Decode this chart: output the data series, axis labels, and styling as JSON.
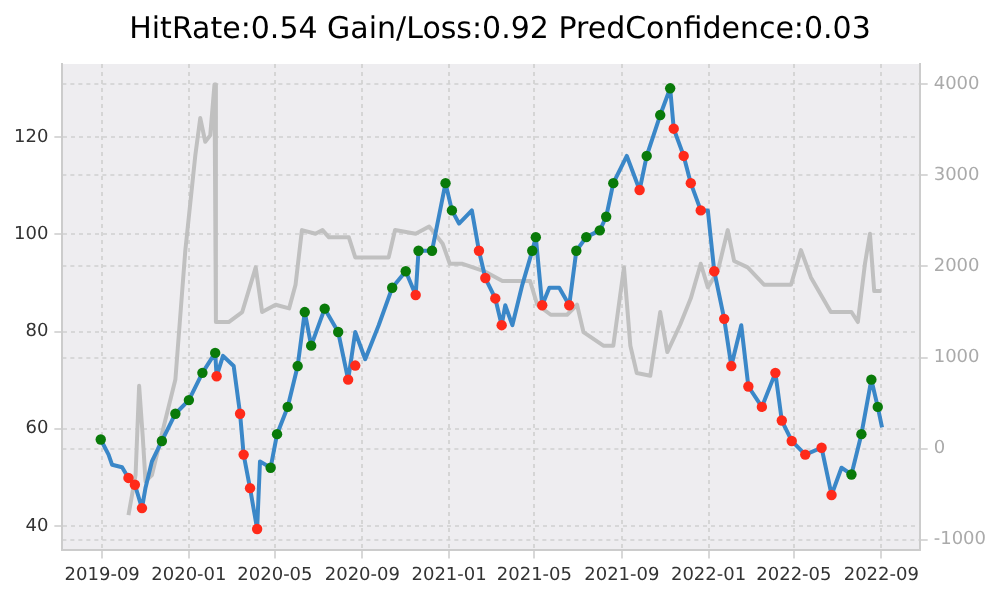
{
  "chart_data": {
    "type": "line",
    "title": "HitRate:0.54 Gain/Loss:0.92 PredConfidence:0.03",
    "xlim": [
      "2019-07-07",
      "2022-10-25"
    ],
    "xticks": [
      "2019-09",
      "2020-01",
      "2020-05",
      "2020-09",
      "2021-01",
      "2021-05",
      "2021-09",
      "2022-01",
      "2022-05",
      "2022-09"
    ],
    "ylim": [
      35,
      135
    ],
    "yticks": [
      40,
      60,
      80,
      100,
      120
    ],
    "y2lim": [
      -1118,
      4224
    ],
    "y2ticks": [
      -1000,
      0,
      1000,
      2000,
      3000,
      4000
    ],
    "grid": true,
    "legend": false,
    "series": [
      {
        "axis": "y2",
        "color": "#c0c0c0",
        "x": [
          "2019-10-08",
          "2019-10-18",
          "2019-10-23",
          "2019-10-28",
          "2019-11-01",
          "2019-11-10",
          "2019-11-24",
          "2019-12-13",
          "2019-12-27",
          "2020-01-10",
          "2020-01-17",
          "2020-01-24",
          "2020-01-31",
          "2020-02-06",
          "2020-02-08",
          "2020-02-26",
          "2020-03-16",
          "2020-04-04",
          "2020-04-13",
          "2020-05-02",
          "2020-05-21",
          "2020-05-30",
          "2020-06-08",
          "2020-06-27",
          "2020-07-07",
          "2020-07-16",
          "2020-08-13",
          "2020-08-22",
          "2020-10-08",
          "2020-10-17",
          "2020-11-15",
          "2020-12-04",
          "2020-12-23",
          "2021-01-02",
          "2021-01-20",
          "2021-02-19",
          "2021-03-17",
          "2021-04-25",
          "2021-05-05",
          "2021-05-24",
          "2021-06-16",
          "2021-06-30",
          "2021-07-09",
          "2021-08-06",
          "2021-08-20",
          "2021-09-04",
          "2021-09-13",
          "2021-09-22",
          "2021-10-11",
          "2021-10-25",
          "2021-11-04",
          "2021-11-22",
          "2021-12-07",
          "2021-12-21",
          "2021-12-31",
          "2022-01-14",
          "2022-01-28",
          "2022-02-06",
          "2022-02-25",
          "2022-03-20",
          "2022-04-27",
          "2022-05-11",
          "2022-05-25",
          "2022-06-22",
          "2022-07-21",
          "2022-07-30",
          "2022-08-09",
          "2022-08-16",
          "2022-08-22",
          "2022-09-01"
        ],
        "values": [
          -730,
          -290,
          690,
          140,
          -360,
          -290,
          160,
          760,
          2180,
          3220,
          3630,
          3370,
          3440,
          4000,
          1390,
          1390,
          1500,
          1990,
          1500,
          1580,
          1540,
          1800,
          2400,
          2360,
          2400,
          2320,
          2320,
          2100,
          2100,
          2400,
          2360,
          2440,
          2250,
          2030,
          2030,
          1950,
          1840,
          1840,
          1580,
          1470,
          1470,
          1580,
          1280,
          1130,
          1130,
          1990,
          1130,
          830,
          800,
          1500,
          1060,
          1360,
          1650,
          2030,
          1770,
          1950,
          2400,
          2060,
          1990,
          1800,
          1800,
          2180,
          1880,
          1500,
          1500,
          1390,
          2030,
          2360,
          1730,
          1730
        ]
      },
      {
        "color": "#3a87c8",
        "x": [
          "2019-08-30",
          "2019-09-10",
          "2019-09-15",
          "2019-09-29",
          "2019-10-08",
          "2019-10-17",
          "2019-10-27",
          "2019-11-01",
          "2019-11-10",
          "2019-11-24",
          "2019-12-13",
          "2020-01-01",
          "2020-01-20",
          "2020-02-07",
          "2020-02-09",
          "2020-02-18",
          "2020-03-04",
          "2020-03-13",
          "2020-03-18",
          "2020-03-27",
          "2020-04-06",
          "2020-04-10",
          "2020-04-25",
          "2020-05-04",
          "2020-05-19",
          "2020-06-02",
          "2020-06-12",
          "2020-06-21",
          "2020-07-10",
          "2020-07-29",
          "2020-08-12",
          "2020-08-22",
          "2020-09-05",
          "2020-09-24",
          "2020-10-13",
          "2020-11-01",
          "2020-11-15",
          "2020-11-19",
          "2020-12-08",
          "2020-12-27",
          "2021-01-05",
          "2021-01-15",
          "2021-02-02",
          "2021-02-12",
          "2021-02-21",
          "2021-03-07",
          "2021-03-16",
          "2021-03-21",
          "2021-03-31",
          "2021-04-14",
          "2021-04-28",
          "2021-05-03",
          "2021-05-12",
          "2021-05-22",
          "2021-06-05",
          "2021-06-19",
          "2021-06-29",
          "2021-07-13",
          "2021-08-01",
          "2021-08-10",
          "2021-08-20",
          "2021-09-08",
          "2021-09-26",
          "2021-10-06",
          "2021-10-25",
          "2021-11-08",
          "2021-11-13",
          "2021-11-27",
          "2021-12-07",
          "2021-12-21",
          "2021-12-31",
          "2022-01-09",
          "2022-01-23",
          "2022-02-02",
          "2022-02-16",
          "2022-02-26",
          "2022-03-17",
          "2022-04-05",
          "2022-04-14",
          "2022-04-28",
          "2022-05-17",
          "2022-06-09",
          "2022-06-23",
          "2022-07-07",
          "2022-07-21",
          "2022-08-04",
          "2022-08-18",
          "2022-08-27",
          "2022-09-02"
        ],
        "values": [
          57.8,
          54.7,
          52.6,
          52.1,
          49.9,
          48.5,
          43.7,
          47.9,
          53.3,
          57.5,
          63.1,
          65.9,
          71.5,
          75.6,
          70.8,
          75,
          72.9,
          63.1,
          54.7,
          47.8,
          39.4,
          53.3,
          52,
          58.9,
          64.5,
          72.9,
          84,
          77.1,
          84.7,
          79.9,
          70.1,
          79.9,
          74.3,
          81.3,
          89,
          92.4,
          87.5,
          96.6,
          96.6,
          110.5,
          104.9,
          102.2,
          104.9,
          96.6,
          91,
          86.8,
          81.3,
          85.4,
          81.3,
          89.6,
          96.6,
          99.4,
          85.4,
          89,
          89,
          85.4,
          96.6,
          99.4,
          100.8,
          103.6,
          110.5,
          116.1,
          109.1,
          116.1,
          124.5,
          130,
          121.7,
          116.1,
          110.5,
          104.9,
          104.9,
          92.4,
          82.6,
          72.9,
          81.3,
          68.7,
          64.5,
          71.5,
          61.7,
          57.5,
          54.7,
          56.1,
          46.4,
          52,
          50.6,
          58.9,
          70.1,
          64.5,
          60.3
        ]
      },
      {
        "type": "scatter",
        "marker": "circle",
        "color": "#097a09",
        "x": [
          "2019-08-30",
          "2019-11-24",
          "2019-12-13",
          "2020-01-01",
          "2020-01-20",
          "2020-02-07",
          "2020-04-25",
          "2020-05-04",
          "2020-05-19",
          "2020-06-02",
          "2020-06-12",
          "2020-06-21",
          "2020-07-10",
          "2020-07-29",
          "2020-10-13",
          "2020-11-01",
          "2020-11-19",
          "2020-12-08",
          "2020-12-27",
          "2021-01-05",
          "2021-04-28",
          "2021-05-03",
          "2021-06-29",
          "2021-07-13",
          "2021-08-01",
          "2021-08-10",
          "2021-08-20",
          "2021-10-06",
          "2021-10-25",
          "2021-11-08",
          "2022-07-21",
          "2022-08-04",
          "2022-08-18",
          "2022-08-27"
        ],
        "values": [
          57.8,
          57.5,
          63.1,
          65.9,
          71.5,
          75.6,
          52,
          58.9,
          64.5,
          72.9,
          84,
          77.1,
          84.7,
          79.9,
          89,
          92.4,
          96.6,
          96.6,
          110.5,
          104.9,
          96.6,
          99.4,
          96.6,
          99.4,
          100.8,
          103.6,
          110.5,
          116.1,
          124.5,
          130,
          50.6,
          58.9,
          70.1,
          64.5
        ]
      },
      {
        "type": "scatter",
        "marker": "circle",
        "color": "#ff2a1a",
        "x": [
          "2019-10-08",
          "2019-10-17",
          "2019-10-27",
          "2020-02-09",
          "2020-03-13",
          "2020-03-18",
          "2020-03-27",
          "2020-04-06",
          "2020-08-12",
          "2020-08-22",
          "2020-11-15",
          "2021-02-12",
          "2021-02-21",
          "2021-03-07",
          "2021-03-16",
          "2021-05-12",
          "2021-06-19",
          "2021-09-26",
          "2021-11-13",
          "2021-11-27",
          "2021-12-07",
          "2021-12-21",
          "2022-01-09",
          "2022-01-23",
          "2022-02-02",
          "2022-02-26",
          "2022-03-17",
          "2022-04-05",
          "2022-04-14",
          "2022-04-28",
          "2022-05-17",
          "2022-06-09",
          "2022-06-23"
        ],
        "values": [
          49.9,
          48.5,
          43.7,
          70.8,
          63.1,
          54.7,
          47.8,
          39.4,
          70.1,
          73,
          87.5,
          96.6,
          91,
          86.8,
          81.3,
          85.4,
          85.4,
          109.1,
          121.7,
          116.1,
          110.5,
          104.9,
          92.4,
          82.6,
          72.9,
          68.7,
          64.5,
          71.5,
          61.7,
          57.5,
          54.7,
          56.1,
          46.4
        ]
      }
    ]
  }
}
